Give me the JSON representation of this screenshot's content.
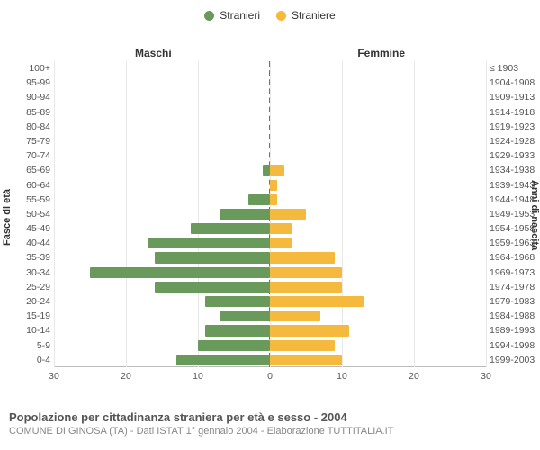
{
  "legend": {
    "male": {
      "label": "Stranieri",
      "color": "#6a9a5b"
    },
    "female": {
      "label": "Straniere",
      "color": "#f5b93e"
    }
  },
  "headers": {
    "left": "Maschi",
    "right": "Femmine"
  },
  "axes": {
    "left_title": "Fasce di età",
    "right_title": "Anni di nascita",
    "x_max": 30,
    "x_ticks": [
      30,
      20,
      10,
      0,
      10,
      20,
      30
    ],
    "grid_color": "#e8e8e8",
    "centerline_color": "#7a7a3a",
    "background": "#ffffff",
    "label_fontsize": 10.5,
    "title_fontsize": 11
  },
  "rows": [
    {
      "age": "100+",
      "birth": "≤ 1903",
      "m": 0,
      "f": 0
    },
    {
      "age": "95-99",
      "birth": "1904-1908",
      "m": 0,
      "f": 0
    },
    {
      "age": "90-94",
      "birth": "1909-1913",
      "m": 0,
      "f": 0
    },
    {
      "age": "85-89",
      "birth": "1914-1918",
      "m": 0,
      "f": 0
    },
    {
      "age": "80-84",
      "birth": "1919-1923",
      "m": 0,
      "f": 0
    },
    {
      "age": "75-79",
      "birth": "1924-1928",
      "m": 0,
      "f": 0
    },
    {
      "age": "70-74",
      "birth": "1929-1933",
      "m": 0,
      "f": 0
    },
    {
      "age": "65-69",
      "birth": "1934-1938",
      "m": 1,
      "f": 2
    },
    {
      "age": "60-64",
      "birth": "1939-1943",
      "m": 0,
      "f": 1
    },
    {
      "age": "55-59",
      "birth": "1944-1948",
      "m": 3,
      "f": 1
    },
    {
      "age": "50-54",
      "birth": "1949-1953",
      "m": 7,
      "f": 5
    },
    {
      "age": "45-49",
      "birth": "1954-1958",
      "m": 11,
      "f": 3
    },
    {
      "age": "40-44",
      "birth": "1959-1963",
      "m": 17,
      "f": 3
    },
    {
      "age": "35-39",
      "birth": "1964-1968",
      "m": 16,
      "f": 9
    },
    {
      "age": "30-34",
      "birth": "1969-1973",
      "m": 25,
      "f": 10
    },
    {
      "age": "25-29",
      "birth": "1974-1978",
      "m": 16,
      "f": 10
    },
    {
      "age": "20-24",
      "birth": "1979-1983",
      "m": 9,
      "f": 13
    },
    {
      "age": "15-19",
      "birth": "1984-1988",
      "m": 7,
      "f": 7
    },
    {
      "age": "10-14",
      "birth": "1989-1993",
      "m": 9,
      "f": 11
    },
    {
      "age": "5-9",
      "birth": "1994-1998",
      "m": 10,
      "f": 9
    },
    {
      "age": "0-4",
      "birth": "1999-2003",
      "m": 13,
      "f": 10
    }
  ],
  "footer": {
    "title": "Popolazione per cittadinanza straniera per età e sesso - 2004",
    "subtitle": "COMUNE DI GINOSA (TA) - Dati ISTAT 1° gennaio 2004 - Elaborazione TUTTITALIA.IT"
  }
}
